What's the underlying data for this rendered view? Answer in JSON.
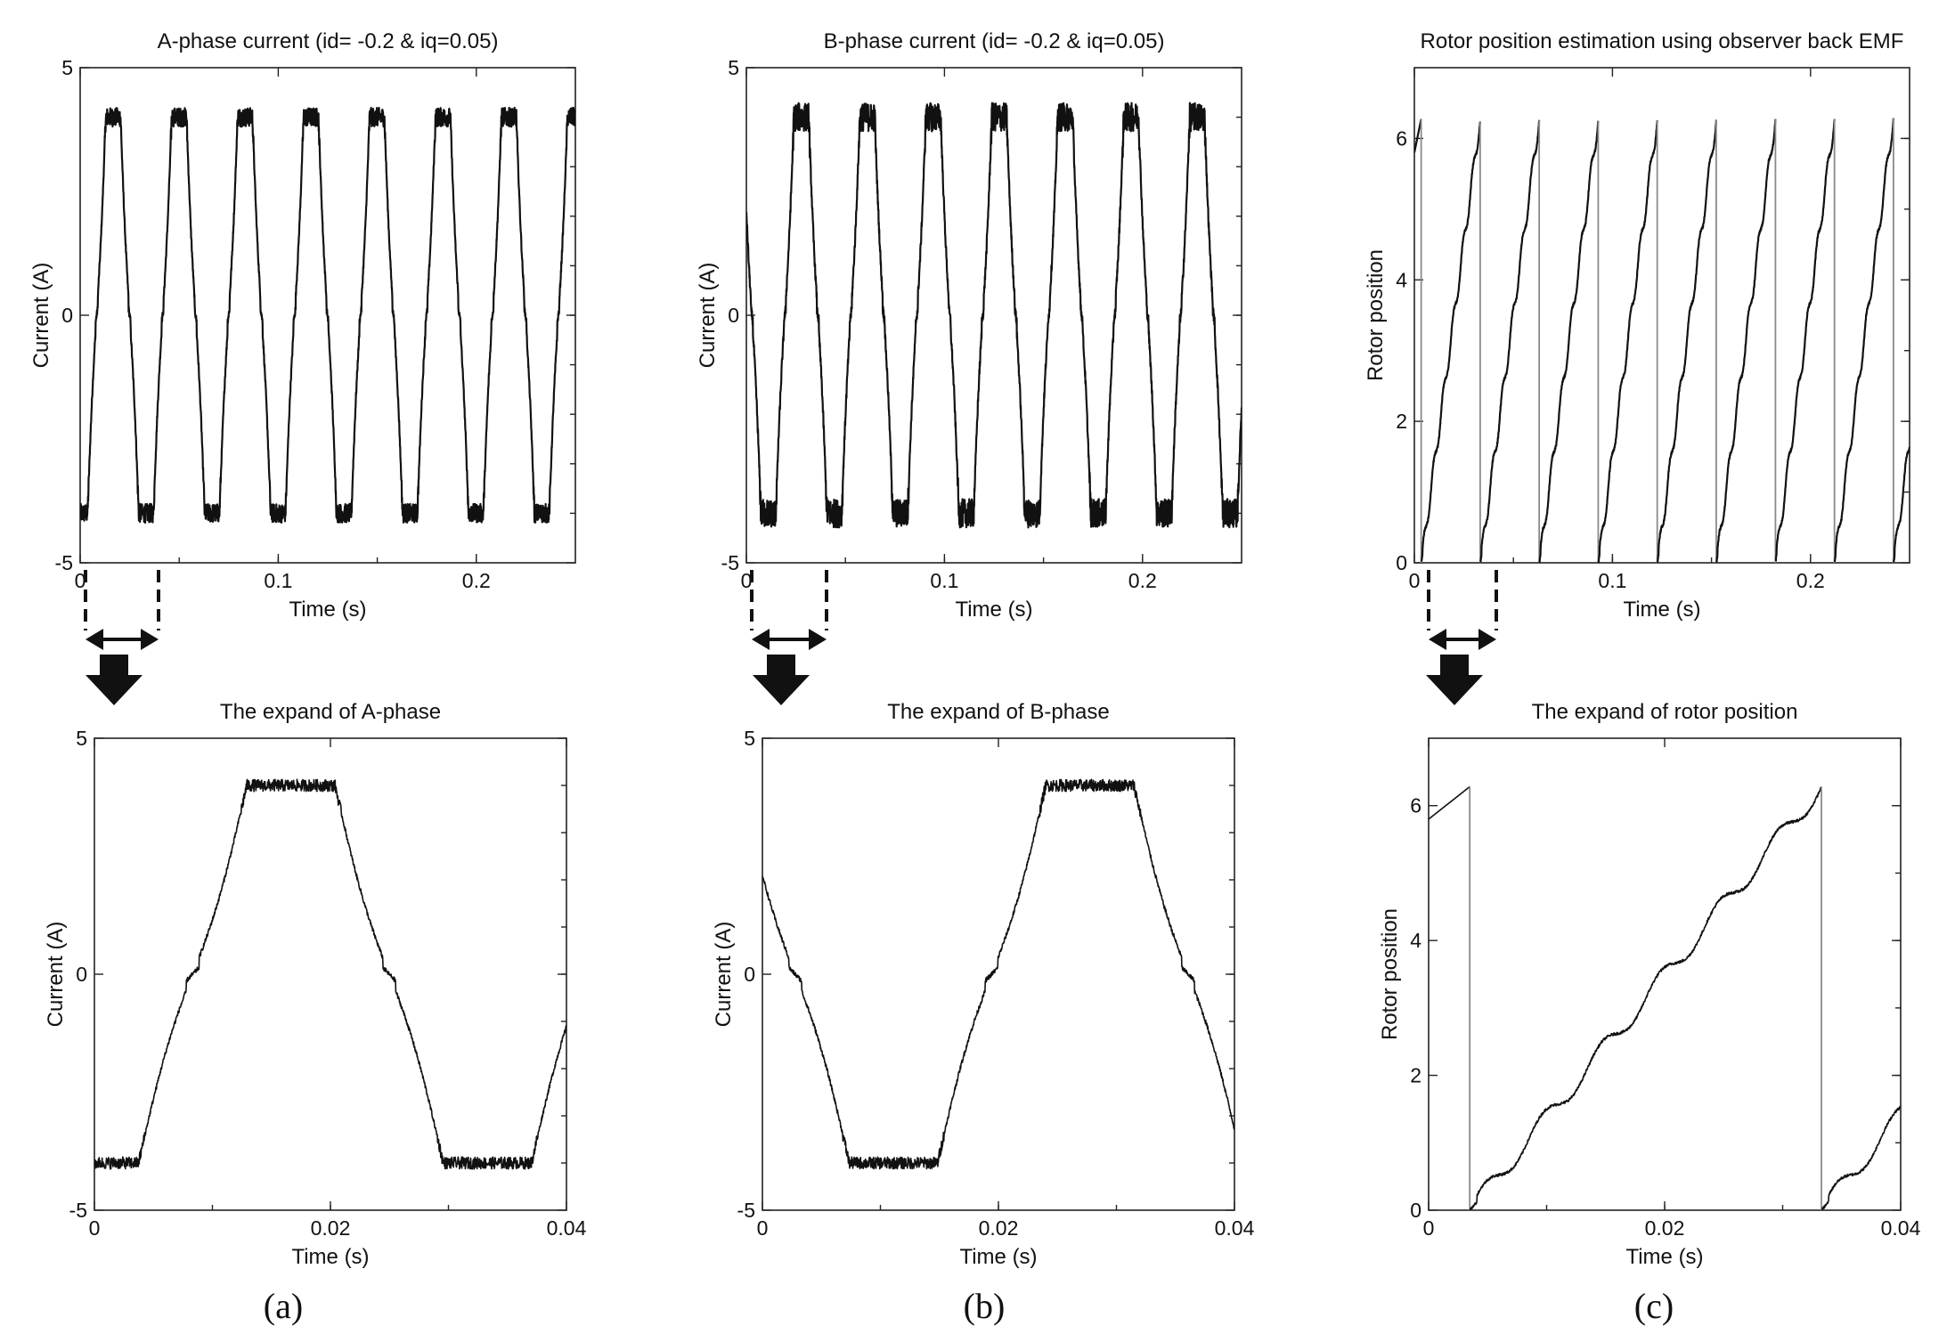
{
  "panel_labels": [
    "(a)",
    "(b)",
    "(c)"
  ],
  "colors": {
    "trace": "#111111",
    "reset_line": "#8a8a8a",
    "frame": "#222222"
  },
  "chart_data": [
    {
      "id": "a-top",
      "type": "line",
      "title": "A-phase current (id= -0.2 & iq=0.05)",
      "xlabel": "Time (s)",
      "ylabel": "Current (A)",
      "xlim": [
        0,
        0.25
      ],
      "ylim": [
        -5,
        5
      ],
      "xticks": [
        0,
        0.1,
        0.2
      ],
      "xtick_labels": [
        "0",
        "0.1",
        "0.2"
      ],
      "yticks": [
        -5,
        0,
        5
      ],
      "ytick_labels": [
        "-5",
        "0",
        "5"
      ],
      "waveform": {
        "shape": "trapezoid-sine",
        "amplitude": 4,
        "period": 0.0333,
        "phase_deg": -90,
        "noise": 0.12
      }
    },
    {
      "id": "b-top",
      "type": "line",
      "title": "B-phase current (id= -0.2 & iq=0.05)",
      "xlabel": "Time (s)",
      "ylabel": "Current (A)",
      "xlim": [
        0,
        0.25
      ],
      "ylim": [
        -5,
        5
      ],
      "xticks": [
        0,
        0.1,
        0.2
      ],
      "xtick_labels": [
        "0",
        "0.1",
        "0.2"
      ],
      "yticks": [
        -5,
        0,
        5
      ],
      "ytick_labels": [
        "-5",
        "0",
        "5"
      ],
      "waveform": {
        "shape": "trapezoid-sine",
        "amplitude": 4,
        "period": 0.0333,
        "phase_deg": 150,
        "noise": 0.18
      }
    },
    {
      "id": "c-top",
      "type": "line",
      "title": "Rotor position estimation using observer back EMF",
      "xlabel": "Time (s)",
      "ylabel": "Rotor position",
      "xlim": [
        0,
        0.25
      ],
      "ylim": [
        0,
        7
      ],
      "xticks": [
        0,
        0.1,
        0.2
      ],
      "xtick_labels": [
        "0",
        "0.1",
        "0.2"
      ],
      "yticks": [
        0,
        2,
        4,
        6
      ],
      "ytick_labels": [
        "0",
        "2",
        "4",
        "6"
      ],
      "waveform": {
        "shape": "sawtooth",
        "max": 6.283,
        "period": 0.0298,
        "first_reset": 0.0035,
        "start_value": 5.8,
        "ripple": 0.12
      }
    },
    {
      "id": "a-zoom",
      "type": "line",
      "title": "The expand of A-phase",
      "xlabel": "Time (s)",
      "ylabel": "Current (A)",
      "xlim": [
        0,
        0.04
      ],
      "ylim": [
        -5,
        5
      ],
      "xticks": [
        0,
        0.02,
        0.04
      ],
      "xtick_labels": [
        "0",
        "0.02",
        "0.04"
      ],
      "yticks": [
        -5,
        0,
        5
      ],
      "ytick_labels": [
        "-5",
        "0",
        "5"
      ],
      "waveform": {
        "shape": "trapezoid-sine",
        "amplitude": 4,
        "period": 0.0333,
        "phase_deg": -90,
        "noise": 0.08
      }
    },
    {
      "id": "b-zoom",
      "type": "line",
      "title": "The expand of B-phase",
      "xlabel": "Time (s)",
      "ylabel": "Current (A)",
      "xlim": [
        0,
        0.04
      ],
      "ylim": [
        -5,
        5
      ],
      "xticks": [
        0,
        0.02,
        0.04
      ],
      "xtick_labels": [
        "0",
        "0.02",
        "0.04"
      ],
      "yticks": [
        -5,
        0,
        5
      ],
      "ytick_labels": [
        "-5",
        "0",
        "5"
      ],
      "waveform": {
        "shape": "trapezoid-sine",
        "amplitude": 4,
        "period": 0.0333,
        "phase_deg": 150,
        "noise": 0.08
      }
    },
    {
      "id": "c-zoom",
      "type": "line",
      "title": "The expand of rotor position",
      "xlabel": "Time (s)",
      "ylabel": "Rotor position",
      "xlim": [
        0,
        0.04
      ],
      "ylim": [
        0,
        7
      ],
      "xticks": [
        0,
        0.02,
        0.04
      ],
      "xtick_labels": [
        "0",
        "0.02",
        "0.04"
      ],
      "yticks": [
        0,
        2,
        4,
        6
      ],
      "ytick_labels": [
        "0",
        "2",
        "4",
        "6"
      ],
      "waveform": {
        "shape": "sawtooth",
        "max": 6.283,
        "period": 0.0298,
        "first_reset": 0.0035,
        "start_value": 5.8,
        "ripple": 0.14
      }
    }
  ]
}
